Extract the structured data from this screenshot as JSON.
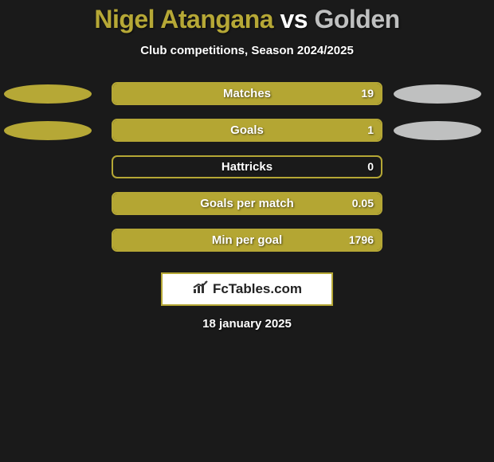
{
  "title": {
    "prefix": "Nigel Atangana ",
    "mid": "vs",
    "suffix": " Golden",
    "prefix_color": "#b6a836",
    "mid_color": "#ffffff",
    "suffix_color": "#bfc0c0"
  },
  "subtitle": "Club competitions, Season 2024/2025",
  "player_colors": {
    "left": "#b6a836",
    "right": "#bfc0c0"
  },
  "bar_style": {
    "border_color": "#b5a735",
    "fill_color": "#b4a633"
  },
  "rows": [
    {
      "label": "Matches",
      "value": "19",
      "fill_pct": 100,
      "show_ellipses": true
    },
    {
      "label": "Goals",
      "value": "1",
      "fill_pct": 100,
      "show_ellipses": true
    },
    {
      "label": "Hattricks",
      "value": "0",
      "fill_pct": 0,
      "show_ellipses": false
    },
    {
      "label": "Goals per match",
      "value": "0.05",
      "fill_pct": 100,
      "show_ellipses": false
    },
    {
      "label": "Min per goal",
      "value": "1796",
      "fill_pct": 100,
      "show_ellipses": false
    }
  ],
  "logo": {
    "text": "FcTables.com",
    "icon_color": "#333333",
    "border_color": "#b5a735"
  },
  "date": "18 january 2025",
  "background_color": "#1a1a1a"
}
